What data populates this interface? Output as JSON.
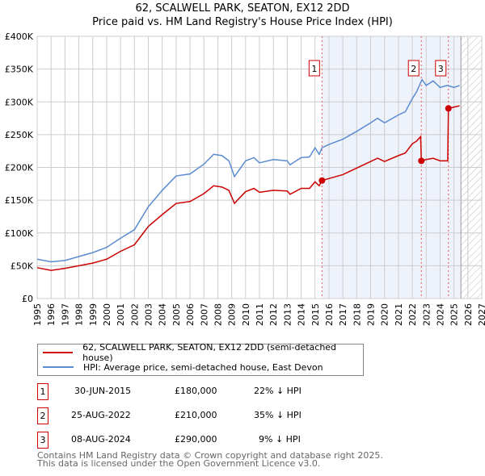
{
  "chart_data": {
    "type": "line",
    "title": "62, SCALWELL PARK, SEATON, EX12 2DD",
    "subtitle": "Price paid vs. HM Land Registry's House Price Index (HPI)",
    "xlim": [
      1995,
      2027
    ],
    "ylim": [
      0,
      400000
    ],
    "x_ticks": [
      "1995",
      "1996",
      "1997",
      "1998",
      "1999",
      "2000",
      "2001",
      "2002",
      "2003",
      "2004",
      "2005",
      "2006",
      "2007",
      "2008",
      "2009",
      "2010",
      "2011",
      "2012",
      "2013",
      "2014",
      "2015",
      "2016",
      "2017",
      "2018",
      "2019",
      "2020",
      "2021",
      "2022",
      "2023",
      "2024",
      "2025",
      "2026",
      "2027"
    ],
    "y_ticks": [
      {
        "v": 0,
        "label": "£0"
      },
      {
        "v": 50000,
        "label": "£50K"
      },
      {
        "v": 100000,
        "label": "£100K"
      },
      {
        "v": 150000,
        "label": "£150K"
      },
      {
        "v": 200000,
        "label": "£200K"
      },
      {
        "v": 250000,
        "label": "£250K"
      },
      {
        "v": 300000,
        "label": "£300K"
      },
      {
        "v": 350000,
        "label": "£350K"
      },
      {
        "v": 400000,
        "label": "£400K"
      }
    ],
    "grid": true,
    "shaded_range": [
      2015.5,
      2025.5
    ],
    "hatched_range": [
      2025.5,
      2027
    ],
    "series": [
      {
        "name": "62, SCALWELL PARK, SEATON, EX12 2DD (semi-detached house)",
        "color": "#cc0000",
        "x": [
          1995,
          1996,
          1997,
          1998,
          1999,
          2000,
          2001,
          2002,
          2003,
          2004,
          2005,
          2006,
          2007,
          2007.7,
          2008.3,
          2008.8,
          2009.2,
          2009.5,
          2010,
          2010.6,
          2011,
          2012,
          2013,
          2013.2,
          2014,
          2014.6,
          2015,
          2015.3,
          2015.5,
          2016,
          2017,
          2018,
          2019,
          2019.5,
          2020,
          2021,
          2021.5,
          2022,
          2022.3,
          2022.6,
          2022.65,
          2023,
          2023.5,
          2024,
          2024.55,
          2024.6,
          2025,
          2025.4
        ],
        "y": [
          47000,
          43000,
          46000,
          50000,
          54000,
          60000,
          72000,
          82000,
          110000,
          128000,
          145000,
          148000,
          160000,
          172000,
          170000,
          165000,
          145000,
          152000,
          163000,
          168000,
          162000,
          165000,
          164000,
          159000,
          168000,
          168000,
          178000,
          172000,
          180000,
          183000,
          189000,
          199000,
          209000,
          214000,
          209000,
          218000,
          222000,
          236000,
          240000,
          247000,
          210000,
          212000,
          214000,
          210000,
          210000,
          290000,
          292000,
          294000
        ]
      },
      {
        "name": "HPI: Average price, semi-detached house, East Devon",
        "color": "#5b8bd0",
        "x": [
          1995,
          1996,
          1997,
          1998,
          1999,
          2000,
          2001,
          2002,
          2003,
          2004,
          2005,
          2006,
          2007,
          2007.7,
          2008.3,
          2008.8,
          2009.2,
          2009.5,
          2010,
          2010.6,
          2011,
          2012,
          2013,
          2013.2,
          2014,
          2014.6,
          2015,
          2015.3,
          2015.5,
          2016,
          2017,
          2018,
          2019,
          2019.5,
          2020,
          2021,
          2021.5,
          2022,
          2022.3,
          2022.7,
          2023,
          2023.5,
          2024,
          2024.5,
          2025,
          2025.4
        ],
        "y": [
          60000,
          56000,
          58000,
          64000,
          70000,
          78000,
          92000,
          105000,
          140000,
          165000,
          187000,
          190000,
          205000,
          220000,
          218000,
          210000,
          186000,
          195000,
          210000,
          215000,
          207000,
          212000,
          210000,
          204000,
          215000,
          216000,
          230000,
          220000,
          230000,
          235000,
          243000,
          255000,
          268000,
          275000,
          268000,
          280000,
          285000,
          305000,
          315000,
          334000,
          325000,
          332000,
          322000,
          325000,
          322000,
          325000
        ]
      }
    ],
    "sales": [
      {
        "id": "1",
        "x": 2015.5,
        "y": 180000,
        "date": "30-JUN-2015",
        "price": "£180,000",
        "hpi": "22% ↓ HPI"
      },
      {
        "id": "2",
        "x": 2022.65,
        "y": 210000,
        "date": "25-AUG-2022",
        "price": "£210,000",
        "hpi": "35% ↓ HPI"
      },
      {
        "id": "3",
        "x": 2024.6,
        "y": 290000,
        "date": "08-AUG-2024",
        "price": "£290,000",
        "hpi": "9% ↓ HPI"
      }
    ]
  },
  "footer": {
    "line1": "Contains HM Land Registry data © Crown copyright and database right 2025.",
    "line2": "This data is licensed under the Open Government Licence v3.0."
  }
}
